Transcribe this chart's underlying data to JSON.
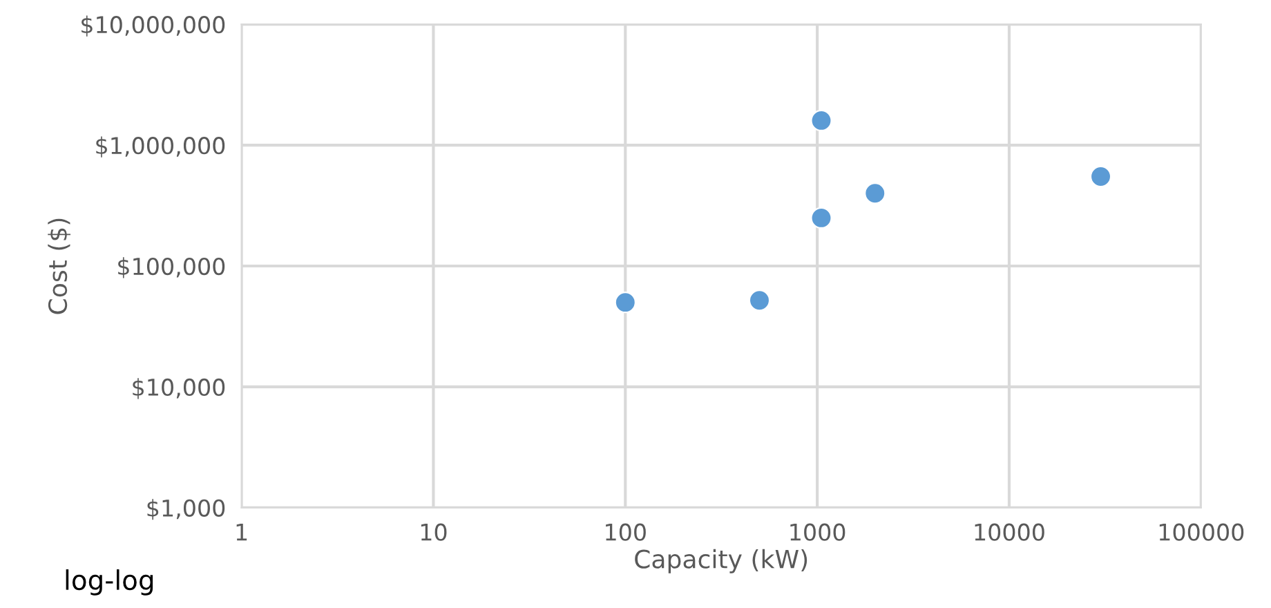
{
  "chart_data": {
    "type": "scatter",
    "xlabel": "Capacity (kW)",
    "ylabel": "Cost ($)",
    "log": "xy",
    "x": [
      100,
      500,
      1050,
      1050,
      2000,
      30000
    ],
    "series": [
      {
        "color": "#5b9bd5",
        "values": [
          50000,
          52000,
          1600000,
          250000,
          400000,
          550000
        ]
      }
    ],
    "xlim": [
      1,
      100000
    ],
    "xticks": [
      1,
      10,
      100,
      1000,
      10000,
      100000
    ],
    "ylim": [
      1000,
      10000000
    ],
    "yticks": [
      {
        "value": 1000,
        "label": "$1,000"
      },
      {
        "value": 10000,
        "label": "$10,000"
      },
      {
        "value": 100000,
        "label": "$100,000"
      },
      {
        "value": 1000000,
        "label": "$1,000,000"
      },
      {
        "value": 10000000,
        "label": "$10,000,000"
      }
    ],
    "grid": true,
    "marker": "circle",
    "annotations": [
      "log-log"
    ]
  }
}
